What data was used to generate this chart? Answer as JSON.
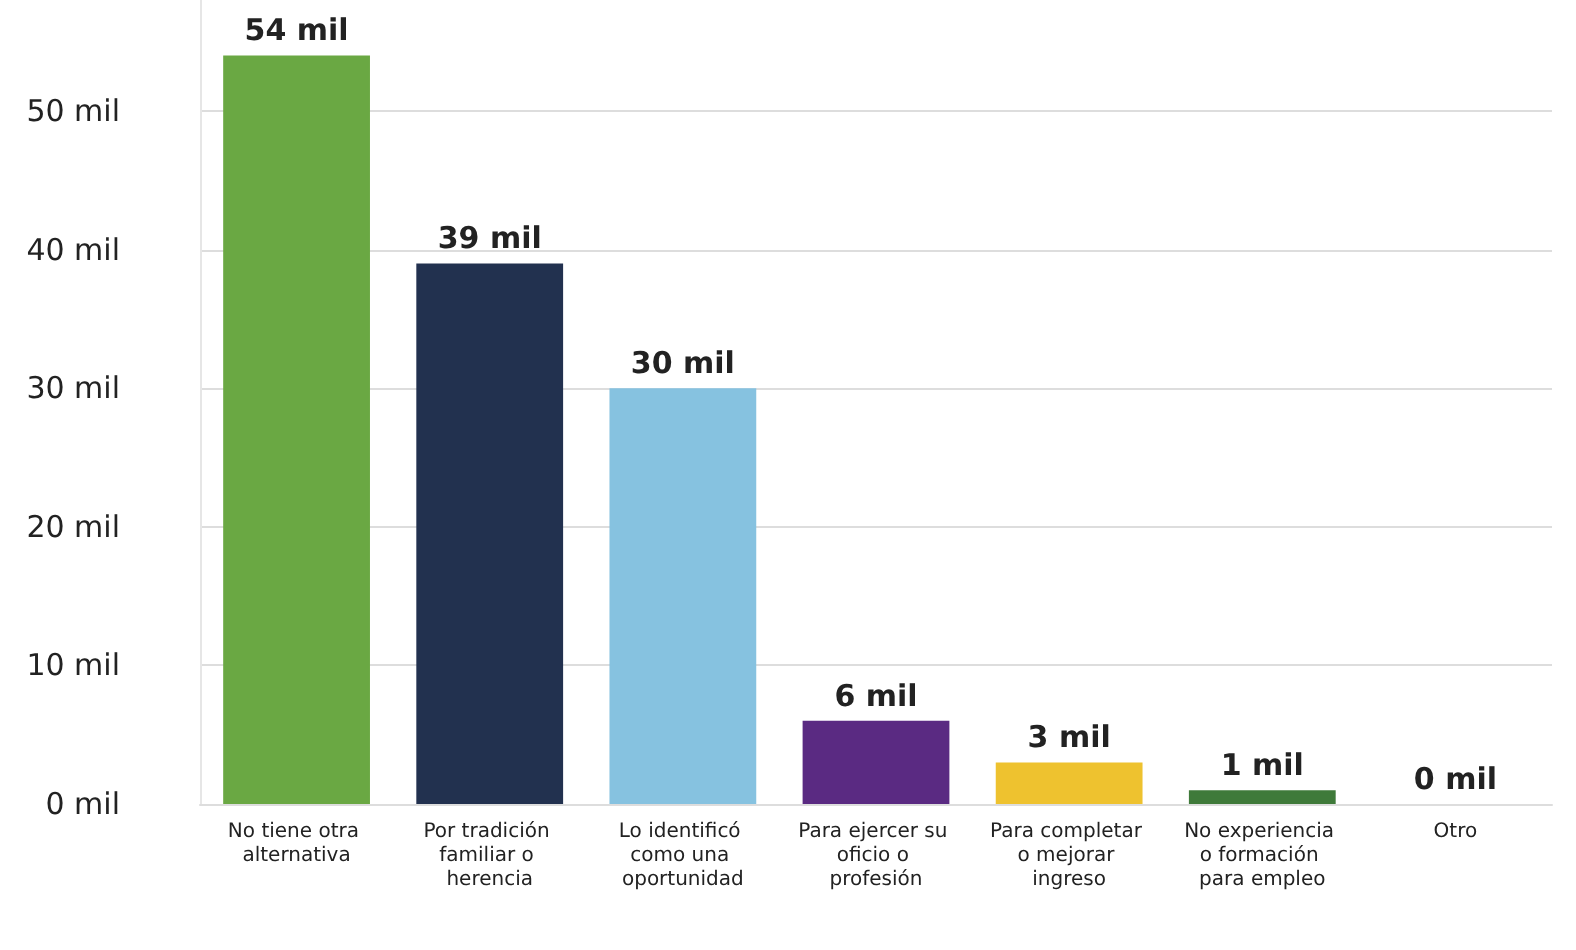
{
  "chart_data": {
    "type": "bar",
    "categories": [
      "No tiene otra alternativa",
      "Por tradición familiar o herencia",
      "Lo identificó como una oportunidad",
      "Para ejercer su oficio o profesión",
      "Para completar o mejorar ingreso",
      "No experiencia o formación para empleo",
      "Otro"
    ],
    "values": [
      54,
      39,
      30,
      6,
      3,
      1,
      0
    ],
    "value_labels": [
      "54 mil",
      "39 mil",
      "30 mil",
      "6 mil",
      "3 mil",
      "1 mil",
      "0 mil"
    ],
    "colors": [
      "#6aa843",
      "#22314f",
      "#86c2e0",
      "#5a2a82",
      "#eec22f",
      "#3f7a3a",
      "#c8c8c8"
    ],
    "ylim": [
      0,
      58
    ],
    "yticks": [
      {
        "value": 0,
        "label": "0 mil"
      },
      {
        "value": 10,
        "label": "10 mil"
      },
      {
        "value": 20,
        "label": "20 mil"
      },
      {
        "value": 30,
        "label": "30 mil"
      },
      {
        "value": 40,
        "label": "40 mil"
      },
      {
        "value": 50,
        "label": "50 mil"
      }
    ],
    "grid": "y"
  }
}
